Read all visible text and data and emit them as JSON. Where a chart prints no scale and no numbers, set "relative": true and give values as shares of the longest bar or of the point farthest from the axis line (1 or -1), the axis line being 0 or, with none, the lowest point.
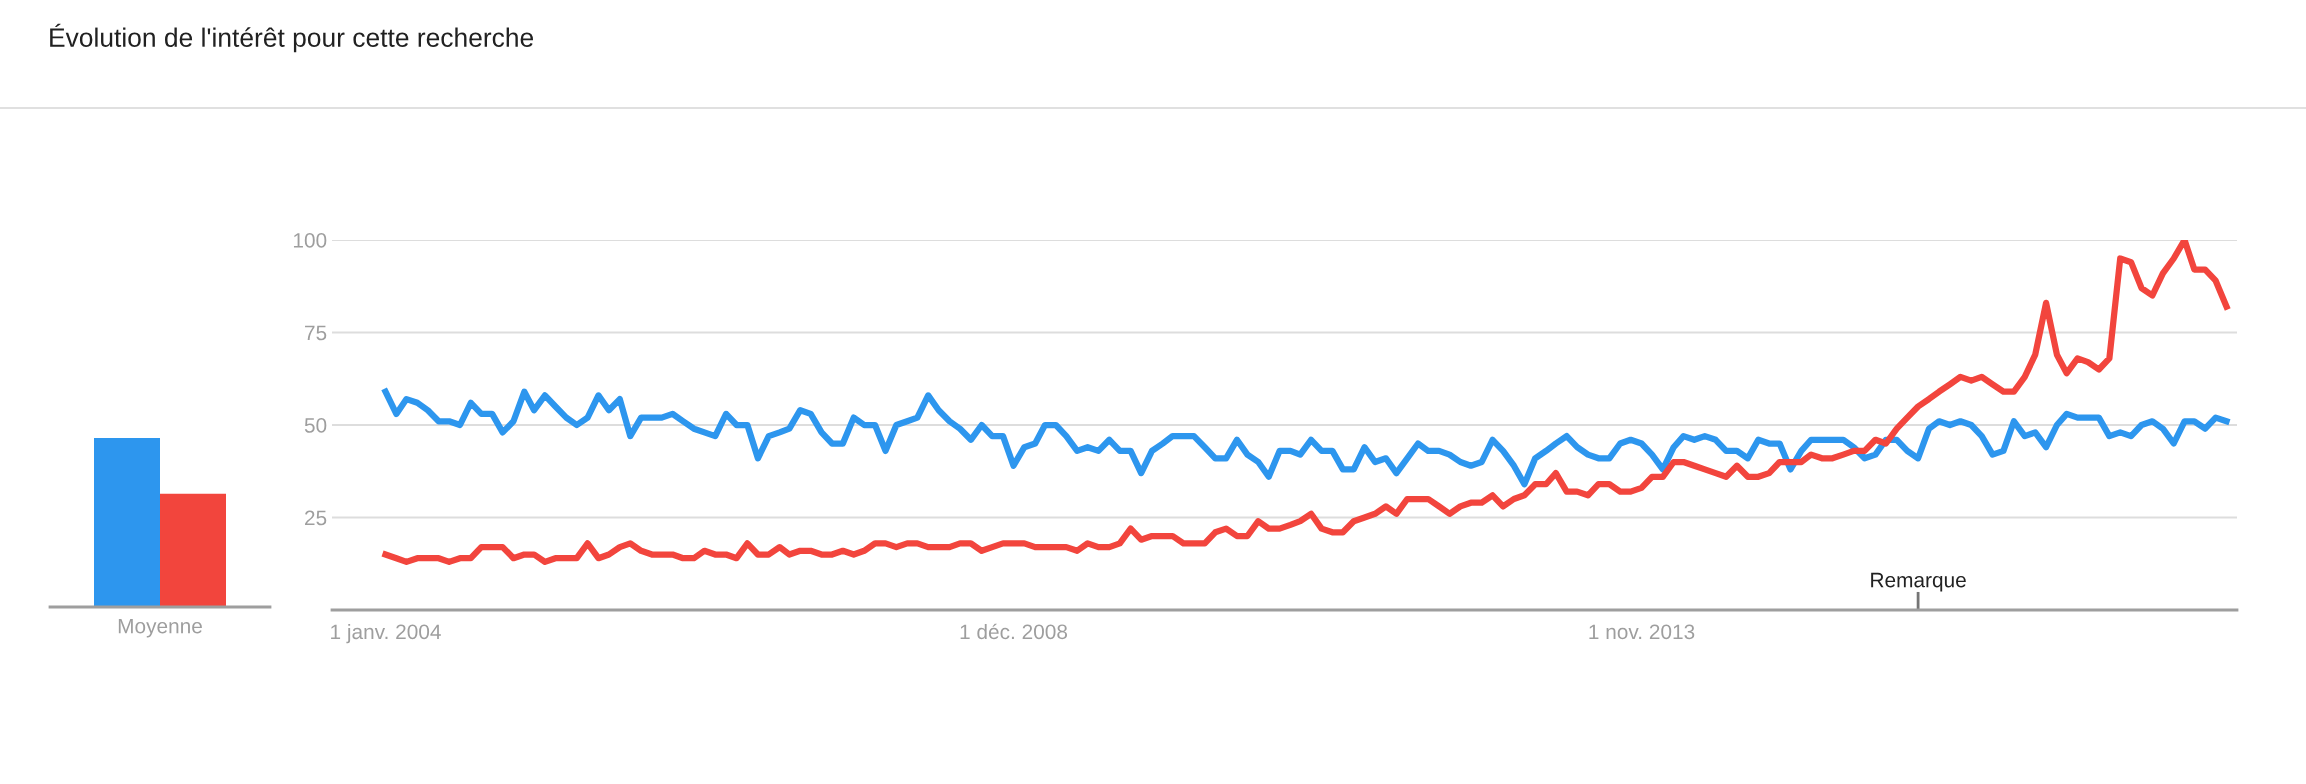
{
  "chart_data": [
    {
      "type": "bar",
      "categories": [
        "Moyenne"
      ],
      "relative": true,
      "grid": false,
      "legend": false,
      "series": [
        {
          "color": "#2d96ee",
          "values": [
            1
          ]
        },
        {
          "color": "#f2453d",
          "values": [
            0.67
          ]
        }
      ]
    },
    {
      "type": "line",
      "title": "Évolution de l'intérêt pour cette recherche",
      "grid": "y",
      "legend": false,
      "marker": "none",
      "line_style": "solid",
      "xlim": [
        "2003-08-01",
        "2018-07-01"
      ],
      "ylim": [
        0,
        100
      ],
      "yticks": [
        25,
        50,
        75,
        100
      ],
      "xticks": [
        {
          "value": "2004-01-01",
          "label": "1 janv. 2004"
        },
        {
          "value": "2008-12-01",
          "label": "1 déc. 2008"
        },
        {
          "value": "2013-11-01",
          "label": "1 nov. 2013"
        }
      ],
      "ref_lines": [
        {
          "axis": "x",
          "value": "2016-01-01",
          "label": "Remarque",
          "color": "#757575"
        }
      ],
      "x": [
        "2004-01",
        "2004-02",
        "2004-03",
        "2004-04",
        "2004-05",
        "2004-06",
        "2004-07",
        "2004-08",
        "2004-09",
        "2004-10",
        "2004-11",
        "2004-12",
        "2005-01",
        "2005-02",
        "2005-03",
        "2005-04",
        "2005-05",
        "2005-06",
        "2005-07",
        "2005-08",
        "2005-09",
        "2005-10",
        "2005-11",
        "2005-12",
        "2006-01",
        "2006-02",
        "2006-03",
        "2006-04",
        "2006-05",
        "2006-06",
        "2006-07",
        "2006-08",
        "2006-09",
        "2006-10",
        "2006-11",
        "2006-12",
        "2007-01",
        "2007-02",
        "2007-03",
        "2007-04",
        "2007-05",
        "2007-06",
        "2007-07",
        "2007-08",
        "2007-09",
        "2007-10",
        "2007-11",
        "2007-12",
        "2008-01",
        "2008-02",
        "2008-03",
        "2008-04",
        "2008-05",
        "2008-06",
        "2008-07",
        "2008-08",
        "2008-09",
        "2008-10",
        "2008-11",
        "2008-12",
        "2009-01",
        "2009-02",
        "2009-03",
        "2009-04",
        "2009-05",
        "2009-06",
        "2009-07",
        "2009-08",
        "2009-09",
        "2009-10",
        "2009-11",
        "2009-12",
        "2010-01",
        "2010-02",
        "2010-03",
        "2010-04",
        "2010-05",
        "2010-06",
        "2010-07",
        "2010-08",
        "2010-09",
        "2010-10",
        "2010-11",
        "2010-12",
        "2011-01",
        "2011-02",
        "2011-03",
        "2011-04",
        "2011-05",
        "2011-06",
        "2011-07",
        "2011-08",
        "2011-09",
        "2011-10",
        "2011-11",
        "2011-12",
        "2012-01",
        "2012-02",
        "2012-03",
        "2012-04",
        "2012-05",
        "2012-06",
        "2012-07",
        "2012-08",
        "2012-09",
        "2012-10",
        "2012-11",
        "2012-12",
        "2013-01",
        "2013-02",
        "2013-03",
        "2013-04",
        "2013-05",
        "2013-06",
        "2013-07",
        "2013-08",
        "2013-09",
        "2013-10",
        "2013-11",
        "2013-12",
        "2014-01",
        "2014-02",
        "2014-03",
        "2014-04",
        "2014-05",
        "2014-06",
        "2014-07",
        "2014-08",
        "2014-09",
        "2014-10",
        "2014-11",
        "2014-12",
        "2015-01",
        "2015-02",
        "2015-03",
        "2015-04",
        "2015-05",
        "2015-06",
        "2015-07",
        "2015-08",
        "2015-09",
        "2015-10",
        "2015-11",
        "2015-12",
        "2016-01",
        "2016-02",
        "2016-03",
        "2016-04",
        "2016-05",
        "2016-06",
        "2016-07",
        "2016-08",
        "2016-09",
        "2016-10",
        "2016-11",
        "2016-12",
        "2017-01",
        "2017-02",
        "2017-03",
        "2017-04",
        "2017-05",
        "2017-06",
        "2017-07",
        "2017-08",
        "2017-09",
        "2017-10",
        "2017-11",
        "2017-12",
        "2018-01",
        "2018-02",
        "2018-03",
        "2018-04",
        "2018-05",
        "2018-06"
      ],
      "series": [
        {
          "color": "#2d96ee",
          "values": [
            59,
            53,
            57,
            56,
            54,
            51,
            51,
            50,
            56,
            53,
            53,
            48,
            51,
            59,
            54,
            58,
            55,
            52,
            50,
            52,
            58,
            54,
            57,
            47,
            52,
            52,
            52,
            53,
            51,
            49,
            48,
            47,
            53,
            50,
            50,
            41,
            47,
            48,
            49,
            54,
            53,
            48,
            45,
            45,
            52,
            50,
            50,
            43,
            50,
            51,
            52,
            58,
            54,
            51,
            49,
            46,
            50,
            47,
            47,
            39,
            44,
            45,
            50,
            50,
            47,
            43,
            44,
            43,
            46,
            43,
            43,
            37,
            43,
            45,
            47,
            47,
            47,
            44,
            41,
            41,
            46,
            42,
            40,
            36,
            43,
            43,
            42,
            46,
            43,
            43,
            38,
            38,
            44,
            40,
            41,
            37,
            41,
            45,
            43,
            43,
            42,
            40,
            39,
            40,
            46,
            43,
            39,
            34,
            41,
            43,
            45,
            47,
            44,
            42,
            41,
            41,
            45,
            46,
            45,
            42,
            38,
            44,
            47,
            46,
            47,
            46,
            43,
            43,
            41,
            46,
            45,
            45,
            38,
            43,
            46,
            46,
            46,
            46,
            44,
            41,
            42,
            46,
            46,
            43,
            41,
            49,
            51,
            50,
            51,
            50,
            47,
            42,
            43,
            51,
            47,
            48,
            44,
            50,
            53,
            52,
            52,
            52,
            47,
            48,
            47,
            50,
            51,
            49,
            45,
            51,
            51,
            49,
            52,
            51
          ]
        },
        {
          "color": "#f2453d",
          "values": [
            15,
            14,
            13,
            14,
            14,
            14,
            13,
            14,
            14,
            17,
            17,
            17,
            14,
            15,
            15,
            13,
            14,
            14,
            14,
            18,
            14,
            15,
            17,
            18,
            16,
            15,
            15,
            15,
            14,
            14,
            16,
            15,
            15,
            14,
            18,
            15,
            15,
            17,
            15,
            16,
            16,
            15,
            15,
            16,
            15,
            16,
            18,
            18,
            17,
            18,
            18,
            17,
            17,
            17,
            18,
            18,
            16,
            17,
            18,
            18,
            18,
            17,
            17,
            17,
            17,
            16,
            18,
            17,
            17,
            18,
            22,
            19,
            20,
            20,
            20,
            18,
            18,
            18,
            21,
            22,
            20,
            20,
            24,
            22,
            22,
            23,
            24,
            26,
            22,
            21,
            21,
            24,
            25,
            26,
            28,
            26,
            30,
            30,
            30,
            28,
            26,
            28,
            29,
            29,
            31,
            28,
            30,
            31,
            34,
            34,
            37,
            32,
            32,
            31,
            34,
            34,
            32,
            32,
            33,
            36,
            36,
            40,
            40,
            39,
            38,
            37,
            36,
            39,
            36,
            36,
            37,
            40,
            40,
            40,
            42,
            41,
            41,
            42,
            43,
            43,
            46,
            45,
            49,
            52,
            55,
            57,
            59,
            61,
            63,
            62,
            63,
            61,
            59,
            59,
            63,
            69,
            83,
            69,
            64,
            68,
            67,
            65,
            68,
            95,
            94,
            87,
            85,
            91,
            95,
            100,
            92,
            92,
            89,
            82
          ]
        }
      ]
    }
  ]
}
